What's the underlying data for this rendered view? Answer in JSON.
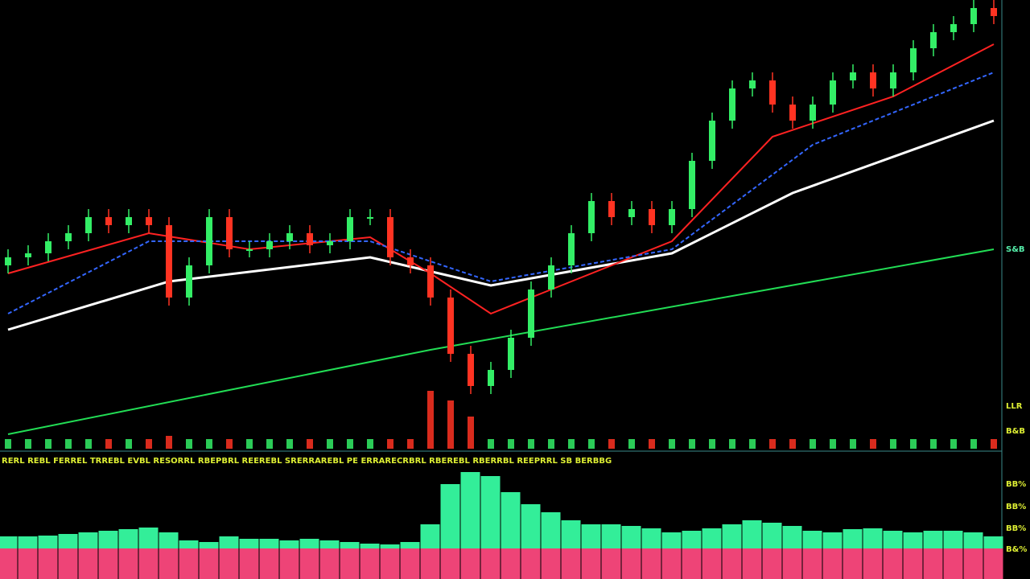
{
  "chart_data": {
    "type": "candlestick",
    "legend_text": "RERL REBL FERREL TRREBL EVBL RESORRL RBEPBRL REEREBL SRERRAREBL PE ERRARECRBRL RBEREBL RBERRBL REEPRRL SB BERBBG",
    "right_labels": [
      "S&B",
      "LLR",
      "B&B",
      "BB%",
      "BB%",
      "BB%",
      "B&%"
    ],
    "ylim": [
      0,
      112
    ],
    "up_color": "#33ee66",
    "down_color": "#ff3322",
    "opens": [
      46,
      48,
      49,
      52,
      54,
      58,
      56,
      58,
      56,
      38,
      46,
      58,
      50,
      50,
      52,
      54,
      51,
      52,
      58,
      58,
      48,
      46,
      38,
      24,
      16,
      20,
      28,
      40,
      46,
      54,
      62,
      58,
      60,
      56,
      60,
      72,
      82,
      90,
      92,
      86,
      82,
      86,
      92,
      94,
      90,
      94,
      100,
      104,
      106,
      110
    ],
    "highs": [
      50,
      51,
      54,
      56,
      60,
      60,
      60,
      60,
      58,
      48,
      60,
      60,
      52,
      54,
      56,
      56,
      54,
      60,
      60,
      60,
      50,
      48,
      40,
      26,
      22,
      30,
      42,
      48,
      56,
      64,
      64,
      62,
      62,
      62,
      74,
      84,
      92,
      94,
      94,
      88,
      88,
      94,
      96,
      96,
      96,
      102,
      106,
      108,
      112,
      112
    ],
    "lows": [
      44,
      46,
      47,
      50,
      52,
      54,
      54,
      54,
      36,
      36,
      44,
      48,
      48,
      48,
      50,
      49,
      49,
      50,
      56,
      46,
      44,
      36,
      22,
      14,
      14,
      18,
      26,
      38,
      44,
      52,
      56,
      56,
      54,
      54,
      58,
      70,
      80,
      88,
      84,
      80,
      80,
      84,
      90,
      88,
      88,
      92,
      98,
      102,
      104,
      106
    ],
    "closes": [
      48,
      49,
      52,
      54,
      58,
      56,
      58,
      56,
      38,
      46,
      58,
      50,
      50,
      52,
      54,
      51,
      52,
      58,
      58,
      48,
      46,
      38,
      24,
      16,
      20,
      28,
      40,
      46,
      54,
      62,
      58,
      60,
      56,
      60,
      72,
      82,
      90,
      92,
      86,
      82,
      86,
      92,
      94,
      90,
      94,
      100,
      104,
      106,
      110,
      108
    ],
    "series": [
      {
        "color": "#ffffff",
        "width": 3,
        "dash": false,
        "x": [
          0,
          8,
          18,
          24,
          33,
          39,
          49
        ],
        "values": [
          30,
          42,
          48,
          41,
          49,
          64,
          82
        ]
      },
      {
        "color": "#22dd55",
        "width": 2,
        "dash": false,
        "x": [
          0,
          21,
          49
        ],
        "values": [
          4,
          25,
          50
        ]
      },
      {
        "color": "#ff2222",
        "width": 2,
        "dash": false,
        "x": [
          0,
          7,
          12,
          18,
          21,
          24,
          27,
          33,
          38,
          44,
          49
        ],
        "values": [
          44,
          54,
          50,
          53,
          44,
          34,
          40,
          52,
          78,
          88,
          101
        ]
      },
      {
        "color": "#3366ff",
        "width": 2,
        "dash": true,
        "x": [
          0,
          7,
          18,
          24,
          33,
          40,
          49
        ],
        "values": [
          34,
          52,
          52,
          42,
          50,
          76,
          94
        ]
      }
    ],
    "volume_lim": [
      0,
      20
    ],
    "volumes": [
      3,
      3,
      3,
      3,
      3,
      3,
      3,
      3,
      4,
      3,
      3,
      3,
      3,
      3,
      3,
      3,
      3,
      3,
      3,
      3,
      3,
      18,
      15,
      10,
      3,
      3,
      3,
      3,
      3,
      3,
      3,
      3,
      3,
      3,
      3,
      3,
      3,
      3,
      3,
      3,
      3,
      3,
      3,
      3,
      3,
      3,
      3,
      3,
      3,
      3
    ],
    "osc_lim": [
      0,
      120
    ],
    "osc_color": "#33ee99",
    "osc_base_color": "#ee4477",
    "oscillator": [
      15,
      15,
      16,
      18,
      20,
      22,
      24,
      26,
      20,
      10,
      8,
      15,
      12,
      12,
      10,
      12,
      10,
      8,
      6,
      5,
      8,
      30,
      80,
      95,
      90,
      70,
      55,
      45,
      35,
      30,
      30,
      28,
      25,
      20,
      22,
      25,
      30,
      35,
      32,
      28,
      22,
      20,
      24,
      25,
      22,
      20,
      22,
      22,
      20,
      15
    ]
  }
}
